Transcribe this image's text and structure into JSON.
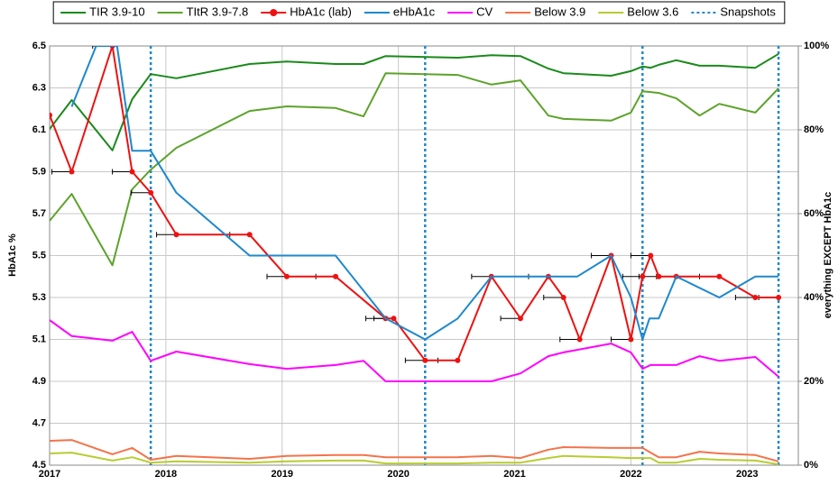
{
  "chart_data": {
    "type": "line",
    "y_label": "HbA1c %",
    "y2_label": "everything EXCEPT HbA1c",
    "xlim": [
      2017,
      2023.44
    ],
    "xticks": [
      2017,
      2018,
      2019,
      2020,
      2021,
      2022,
      2023
    ],
    "ylim": [
      4.5,
      6.5
    ],
    "yticks": [
      4.5,
      4.7,
      4.9,
      5.1,
      5.3,
      5.5,
      5.7,
      5.9,
      6.1,
      6.3,
      6.5
    ],
    "y2lim": [
      0,
      100
    ],
    "y2ticks": [
      {
        "value": 0,
        "label": "0%"
      },
      {
        "value": 20,
        "label": "20%"
      },
      {
        "value": 40,
        "label": "40%"
      },
      {
        "value": 60,
        "label": "60%"
      },
      {
        "value": 80,
        "label": "80%"
      },
      {
        "value": 100,
        "label": "100%"
      }
    ],
    "grid": true,
    "series": [
      {
        "name": "TIR 3.9-10",
        "color": "#1a8a1a",
        "axis": "y2",
        "x": [
          2017.0,
          2017.19,
          2017.54,
          2017.71,
          2017.87,
          2018.09,
          2018.72,
          2019.04,
          2019.46,
          2019.7,
          2019.89,
          2020.51,
          2020.8,
          2021.05,
          2021.29,
          2021.42,
          2021.83,
          2022.0,
          2022.1,
          2022.17,
          2022.24,
          2022.39,
          2022.59,
          2022.76,
          2023.07,
          2023.27
        ],
        "values": [
          80.2,
          87.1,
          75.1,
          87.3,
          93.3,
          92.3,
          95.7,
          96.3,
          95.7,
          95.7,
          97.6,
          97.2,
          97.8,
          97.6,
          94.6,
          93.5,
          92.9,
          94.0,
          95.1,
          94.8,
          95.5,
          96.6,
          95.3,
          95.3,
          94.8,
          98.1
        ]
      },
      {
        "name": "TItR 3.9-7.8",
        "color": "#5ca32a",
        "axis": "y2",
        "x": [
          2017.0,
          2017.19,
          2017.54,
          2017.71,
          2017.87,
          2018.09,
          2018.72,
          2019.04,
          2019.46,
          2019.7,
          2019.89,
          2020.51,
          2020.8,
          2021.05,
          2021.29,
          2021.42,
          2021.83,
          2022.0,
          2022.1,
          2022.17,
          2022.24,
          2022.39,
          2022.59,
          2022.76,
          2023.07,
          2023.27
        ],
        "values": [
          58.3,
          64.7,
          47.7,
          65.8,
          70.5,
          75.7,
          84.5,
          85.6,
          85.2,
          83.2,
          93.5,
          93.1,
          90.8,
          91.8,
          83.4,
          82.6,
          82.2,
          84.1,
          89.2,
          89.0,
          88.8,
          87.5,
          83.4,
          86.2,
          84.1,
          89.9
        ]
      },
      {
        "name": "HbA1c (lab)",
        "color": "#ee1111",
        "axis": "y",
        "marker": true,
        "x": [
          2017.0,
          2017.19,
          2017.54,
          2017.71,
          2017.87,
          2018.09,
          2018.72,
          2019.04,
          2019.46,
          2019.89,
          2019.96,
          2020.23,
          2020.51,
          2020.8,
          2021.05,
          2021.29,
          2021.42,
          2021.56,
          2021.83,
          2022.0,
          2022.1,
          2022.17,
          2022.24,
          2022.39,
          2022.76,
          2023.07,
          2023.27
        ],
        "values": [
          6.17,
          5.9,
          6.5,
          5.9,
          5.8,
          5.6,
          5.6,
          5.4,
          5.4,
          5.2,
          5.2,
          5.0,
          5.0,
          5.4,
          5.2,
          5.4,
          5.3,
          5.1,
          5.5,
          5.1,
          5.4,
          5.5,
          5.4,
          5.4,
          5.4,
          5.3,
          5.3
        ],
        "xerr": [
          0.17,
          0.17,
          0.17,
          0.17,
          0.17,
          0.17,
          0.17,
          0.17,
          0.17,
          0.17,
          0.17,
          0.17,
          0.17,
          0.17,
          0.17,
          0.17,
          0.17,
          0.17,
          0.17,
          0.17,
          0.17,
          0.17,
          0.17,
          0.17,
          0.17,
          0.17,
          0.17
        ]
      },
      {
        "name": "eHbA1c",
        "color": "#1e88cc",
        "axis": "y",
        "x": [
          2017.19,
          2017.4,
          2017.58,
          2017.71,
          2017.87,
          2018.09,
          2018.72,
          2019.04,
          2019.46,
          2019.89,
          2020.23,
          2020.51,
          2020.8,
          2021.05,
          2021.54,
          2021.83,
          2022.0,
          2022.1,
          2022.16,
          2022.24,
          2022.39,
          2022.76,
          2023.07,
          2023.27
        ],
        "values": [
          6.21,
          6.5,
          6.5,
          6.0,
          6.0,
          5.8,
          5.5,
          5.5,
          5.5,
          5.2,
          5.1,
          5.2,
          5.4,
          5.4,
          5.4,
          5.5,
          5.3,
          5.1,
          5.2,
          5.2,
          5.4,
          5.3,
          5.4,
          5.4
        ]
      },
      {
        "name": "CV",
        "color": "#ff00ff",
        "axis": "y2",
        "x": [
          2017.0,
          2017.19,
          2017.54,
          2017.71,
          2017.87,
          2018.09,
          2018.72,
          2019.04,
          2019.46,
          2019.7,
          2019.89,
          2020.51,
          2020.8,
          2021.05,
          2021.29,
          2021.42,
          2021.83,
          2022.0,
          2022.1,
          2022.17,
          2022.24,
          2022.39,
          2022.59,
          2022.76,
          2023.07,
          2023.27
        ],
        "values": [
          34.6,
          30.8,
          29.7,
          31.8,
          24.9,
          27.1,
          24.1,
          23.0,
          23.9,
          24.9,
          20.0,
          20.0,
          20.0,
          21.9,
          26.0,
          26.9,
          29.0,
          26.9,
          23.0,
          23.9,
          23.9,
          23.9,
          26.0,
          24.9,
          25.8,
          21.1
        ]
      },
      {
        "name": "Below 3.9",
        "color": "#f4734a",
        "axis": "y2",
        "x": [
          2017.0,
          2017.19,
          2017.54,
          2017.71,
          2017.87,
          2018.09,
          2018.72,
          2019.04,
          2019.46,
          2019.7,
          2019.89,
          2020.51,
          2020.8,
          2021.05,
          2021.29,
          2021.42,
          2021.83,
          2022.0,
          2022.1,
          2022.17,
          2022.24,
          2022.39,
          2022.59,
          2022.76,
          2023.07,
          2023.27
        ],
        "values": [
          5.8,
          6.0,
          2.6,
          4.1,
          1.3,
          2.2,
          1.5,
          2.2,
          2.4,
          2.4,
          1.9,
          1.9,
          2.2,
          1.7,
          3.7,
          4.3,
          4.1,
          4.1,
          4.1,
          3.0,
          1.9,
          1.9,
          3.2,
          2.8,
          2.4,
          0.9
        ]
      },
      {
        "name": "Below 3.6",
        "color": "#b8cc30",
        "axis": "y2",
        "x": [
          2017.0,
          2017.19,
          2017.54,
          2017.71,
          2017.87,
          2018.09,
          2018.72,
          2019.04,
          2019.46,
          2019.7,
          2019.89,
          2020.51,
          2020.8,
          2021.05,
          2021.29,
          2021.42,
          2021.83,
          2022.0,
          2022.1,
          2022.17,
          2022.24,
          2022.39,
          2022.59,
          2022.76,
          2023.07,
          2023.27
        ],
        "values": [
          2.8,
          3.0,
          1.1,
          1.9,
          0.6,
          0.9,
          0.6,
          0.9,
          1.1,
          1.1,
          0.4,
          0.4,
          0.6,
          0.6,
          1.7,
          2.2,
          1.9,
          1.7,
          1.7,
          1.7,
          0.6,
          0.6,
          1.5,
          1.3,
          1.1,
          0.2
        ]
      }
    ],
    "snapshots": {
      "name": "Snapshots",
      "color": "#1e88cc",
      "x": [
        2017.87,
        2020.23,
        2022.1,
        2023.27
      ]
    }
  }
}
